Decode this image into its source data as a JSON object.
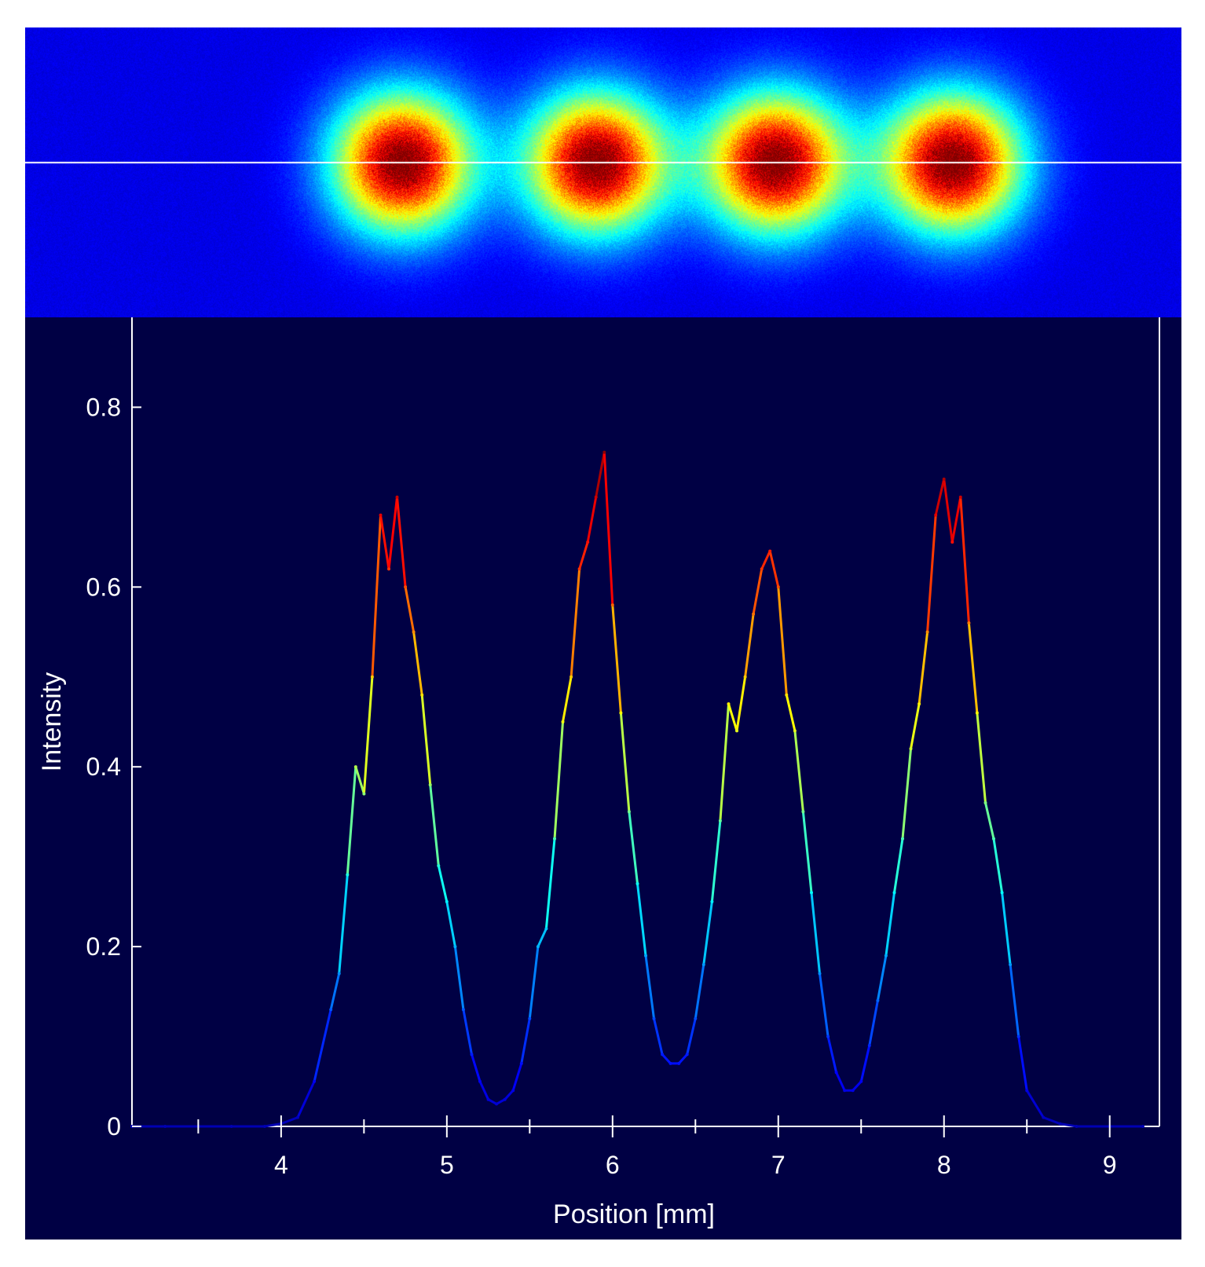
{
  "colors": {
    "background": "#000044",
    "axes": "#ffffff",
    "beam_background": "#0a1aa0",
    "scan_line": "#ffffff",
    "colormap": "jet"
  },
  "beam_image": {
    "spot_count": 4,
    "spot_centers_mm": [
      4.73,
      5.9,
      6.98,
      8.05
    ],
    "scan_line_present": true
  },
  "chart_data": {
    "type": "line",
    "title": "",
    "xlabel": "Position [mm]",
    "ylabel": "Intensity",
    "xlim": [
      3.1,
      9.3
    ],
    "ylim": [
      0,
      0.9
    ],
    "x_ticks": [
      4,
      5,
      6,
      7,
      8,
      9
    ],
    "y_ticks": [
      0,
      0.2,
      0.4,
      0.6,
      0.8
    ],
    "x_tick_labels": [
      "4",
      "5",
      "6",
      "7",
      "8",
      "9"
    ],
    "y_tick_labels": [
      "0",
      "0.2",
      "0.4",
      "0.6",
      "0.8"
    ],
    "grid": false,
    "legend": "none",
    "line_coloring": "jet colormap by intensity",
    "series": [
      {
        "x": [
          3.1,
          3.3,
          3.5,
          3.7,
          3.9,
          4.0,
          4.1,
          4.2,
          4.3,
          4.35,
          4.4,
          4.45,
          4.5,
          4.55,
          4.6,
          4.65,
          4.7,
          4.75,
          4.8,
          4.85,
          4.9,
          4.95,
          5.0,
          5.05,
          5.1,
          5.15,
          5.2,
          5.25,
          5.3,
          5.35,
          5.4,
          5.45,
          5.5,
          5.55,
          5.6,
          5.65,
          5.7,
          5.75,
          5.8,
          5.85,
          5.9,
          5.95,
          6.0,
          6.05,
          6.1,
          6.15,
          6.2,
          6.25,
          6.3,
          6.35,
          6.4,
          6.45,
          6.5,
          6.55,
          6.6,
          6.65,
          6.7,
          6.75,
          6.8,
          6.85,
          6.9,
          6.95,
          7.0,
          7.05,
          7.1,
          7.15,
          7.2,
          7.25,
          7.3,
          7.35,
          7.4,
          7.45,
          7.5,
          7.55,
          7.6,
          7.65,
          7.7,
          7.75,
          7.8,
          7.85,
          7.9,
          7.95,
          8.0,
          8.05,
          8.1,
          8.15,
          8.2,
          8.25,
          8.3,
          8.35,
          8.4,
          8.45,
          8.5,
          8.6,
          8.7,
          8.8,
          9.0,
          9.2
        ],
        "y": [
          0.0,
          0.0,
          0.0,
          0.0,
          0.0,
          0.003,
          0.01,
          0.05,
          0.13,
          0.17,
          0.28,
          0.4,
          0.37,
          0.5,
          0.68,
          0.62,
          0.7,
          0.6,
          0.55,
          0.48,
          0.38,
          0.29,
          0.25,
          0.2,
          0.13,
          0.08,
          0.05,
          0.03,
          0.025,
          0.03,
          0.04,
          0.07,
          0.12,
          0.2,
          0.22,
          0.32,
          0.45,
          0.5,
          0.62,
          0.65,
          0.7,
          0.75,
          0.58,
          0.46,
          0.35,
          0.27,
          0.19,
          0.12,
          0.08,
          0.07,
          0.07,
          0.08,
          0.12,
          0.18,
          0.25,
          0.34,
          0.47,
          0.44,
          0.5,
          0.57,
          0.62,
          0.64,
          0.6,
          0.48,
          0.44,
          0.35,
          0.26,
          0.17,
          0.1,
          0.06,
          0.04,
          0.04,
          0.05,
          0.09,
          0.14,
          0.19,
          0.26,
          0.32,
          0.42,
          0.47,
          0.55,
          0.68,
          0.72,
          0.65,
          0.7,
          0.56,
          0.46,
          0.36,
          0.32,
          0.26,
          0.18,
          0.1,
          0.04,
          0.01,
          0.003,
          0.0,
          0.0,
          0.0
        ]
      }
    ]
  }
}
